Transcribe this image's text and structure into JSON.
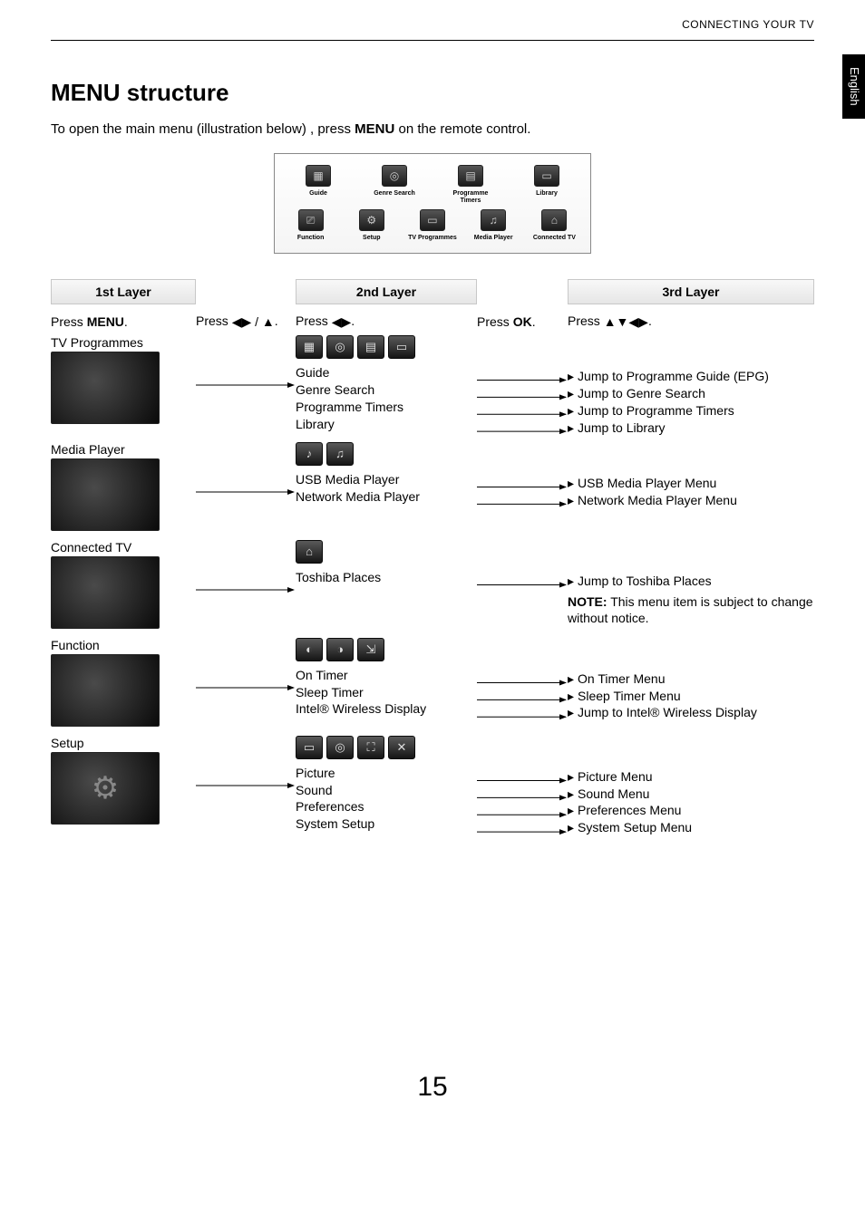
{
  "header": {
    "section_label": "CONNECTING YOUR TV",
    "language_tab": "English"
  },
  "title": "MENU structure",
  "intro": {
    "pre": "To open the main menu (illustration below) , press ",
    "bold": "MENU",
    "post": " on the remote control."
  },
  "top_menu": {
    "row1": [
      {
        "label": "Guide",
        "glyph": "▦"
      },
      {
        "label": "Genre Search",
        "glyph": "◎"
      },
      {
        "label": "Programme Timers",
        "glyph": "▤"
      },
      {
        "label": "Library",
        "glyph": "▭"
      }
    ],
    "row2": [
      {
        "label": "Function",
        "glyph": "⎚"
      },
      {
        "label": "Setup",
        "glyph": "⚙"
      },
      {
        "label": "TV Programmes",
        "glyph": "▭"
      },
      {
        "label": "Media Player",
        "glyph": "♫"
      },
      {
        "label": "Connected TV",
        "glyph": "⌂"
      }
    ]
  },
  "layers": {
    "l1": "1st Layer",
    "l2": "2nd Layer",
    "l3": "3rd Layer"
  },
  "press": {
    "c1_pre": "Press ",
    "c1_bold": "MENU",
    "c1_post": ".",
    "c1b_pre": "Press ",
    "c1b_glyph": "◀▶ / ▲",
    "c1b_post": ".",
    "c2_pre": "Press ",
    "c2_glyph": "◀▶",
    "c2_post": ".",
    "c2b_pre": "Press ",
    "c2b_bold": "OK",
    "c2b_post": ".",
    "c3_pre": "Press ",
    "c3_glyph": "▲▼◀▶",
    "c3_post": "."
  },
  "sections": [
    {
      "title": "TV Programmes",
      "thumb_glyph": "",
      "strip": [
        "▦",
        "◎",
        "▤",
        "▭"
      ],
      "l2": [
        "Guide",
        "Genre Search",
        "Programme Timers",
        "Library"
      ],
      "l3": [
        "Jump to Programme Guide (EPG)",
        "Jump to Genre Search",
        "Jump to Programme Timers",
        "Jump to Library"
      ],
      "note": null
    },
    {
      "title": "Media Player",
      "thumb_glyph": "",
      "strip": [
        "♪",
        "♫"
      ],
      "l2": [
        "USB Media Player",
        "Network Media Player"
      ],
      "l3": [
        "USB Media Player Menu",
        "Network Media Player Menu"
      ],
      "note": null
    },
    {
      "title": "Connected TV",
      "thumb_glyph": "",
      "strip": [
        "⌂"
      ],
      "l2": [
        "Toshiba Places"
      ],
      "l3": [
        "Jump to Toshiba Places"
      ],
      "note": {
        "bold": "NOTE:",
        "text": " This menu item is subject to change without notice."
      }
    },
    {
      "title": "Function",
      "thumb_glyph": "",
      "strip": [
        "◐",
        "◑",
        "⇲"
      ],
      "l2": [
        "On Timer",
        "Sleep Timer",
        "Intel® Wireless Display"
      ],
      "l3": [
        "On Timer Menu",
        "Sleep Timer Menu",
        "Jump to Intel® Wireless Display"
      ],
      "note": null
    },
    {
      "title": "Setup",
      "thumb_glyph": "⚙",
      "strip": [
        "▭",
        "◎",
        "⛶",
        "✕"
      ],
      "l2": [
        "Picture",
        "Sound",
        "Preferences",
        "System Setup"
      ],
      "l3": [
        "Picture Menu",
        "Sound Menu",
        "Preferences Menu",
        "System Setup Menu"
      ],
      "note": null
    }
  ],
  "page_number": "15",
  "colors": {
    "header_gradient_top": "#f8f8f8",
    "header_gradient_bottom": "#e6e6e6",
    "border": "#c8c8c8",
    "thumb_dark": "#0a0a0a"
  }
}
